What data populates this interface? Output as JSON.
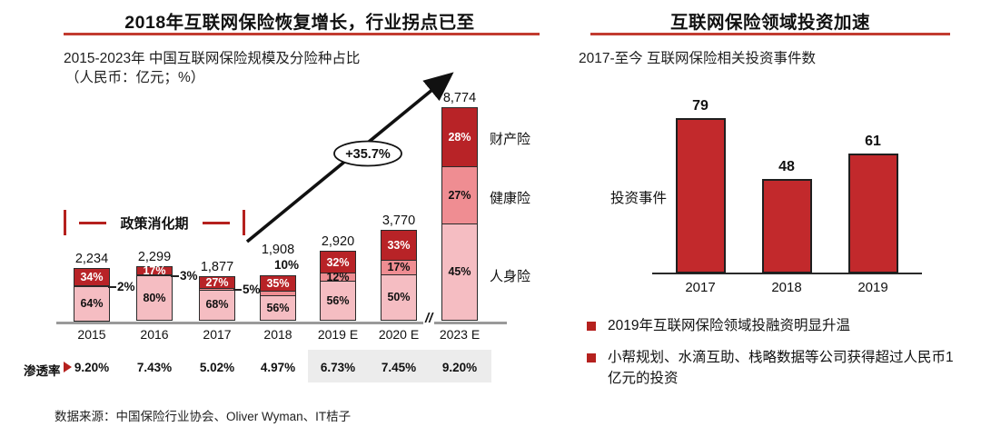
{
  "colors": {
    "accent_red": "#b5211e",
    "underline_red": "#c23b30",
    "property_segment_red": "#b82327",
    "health_segment_pink": "#ef8d92",
    "life_segment_pink": "#f5bdc2",
    "invest_bar_red": "#c2292c",
    "penetration_band_gray": "#ececec"
  },
  "left_panel": {
    "title": "2018年互联网保险恢复增长，行业拐点已至",
    "subtitle_line1": "2015-2023年 中国互联网保险规模及分险种占比",
    "subtitle_line2": "（人民币：亿元；%）",
    "policy_label": "政策消化期",
    "growth_label": "+35.7%",
    "axis_break": "//",
    "penetration_title": "渗透率",
    "source": "数据来源：中国保险行业协会、Oliver Wyman、IT桔子"
  },
  "right_panel": {
    "title": "互联网保险领域投资加速",
    "subtitle": "2017-至今 互联网保险相关投资事件数",
    "ylabel": "投资事件",
    "bullets": [
      "2019年互联网保险领域投融资明显升温",
      "小帮规划、水滴互助、栈略数据等公司获得超过人民币1亿元的投资"
    ]
  },
  "chart_data": [
    {
      "type": "bar",
      "stacked": true,
      "title": "2015-2023年 中国互联网保险规模及分险种占比",
      "unit": "人民币：亿元；%",
      "categories": [
        "2015",
        "2016",
        "2017",
        "2018",
        "2019 E",
        "2020 E",
        "2023 E"
      ],
      "totals": [
        2234,
        2299,
        1877,
        1908,
        2920,
        3770,
        8774
      ],
      "total_labels": [
        "2,234",
        "2,299",
        "1,877",
        "1,908",
        "2,920",
        "3,770",
        "8,774"
      ],
      "series": [
        {
          "name": "财产险",
          "role": "property",
          "values_pct": [
            34,
            17,
            27,
            35,
            32,
            33,
            28
          ]
        },
        {
          "name": "健康险",
          "role": "health",
          "values_pct": [
            2,
            3,
            5,
            10,
            12,
            17,
            27
          ]
        },
        {
          "name": "人身险",
          "role": "life",
          "values_pct": [
            64,
            80,
            68,
            56,
            56,
            50,
            45
          ]
        }
      ],
      "penetration_row": [
        "9.20%",
        "7.43%",
        "5.02%",
        "4.97%",
        "6.73%",
        "7.45%",
        "9.20%"
      ],
      "annotations": {
        "policy_period": "政策消化期",
        "growth": "+35.7%",
        "axis_break": "//"
      },
      "legend_position": "right-of-last-bar",
      "grid": false
    },
    {
      "type": "bar",
      "title": "2017-至今 互联网保险相关投资事件数",
      "ylabel": "投资事件",
      "categories": [
        "2017",
        "2018",
        "2019"
      ],
      "values": [
        79,
        48,
        61
      ],
      "grid": false
    }
  ]
}
